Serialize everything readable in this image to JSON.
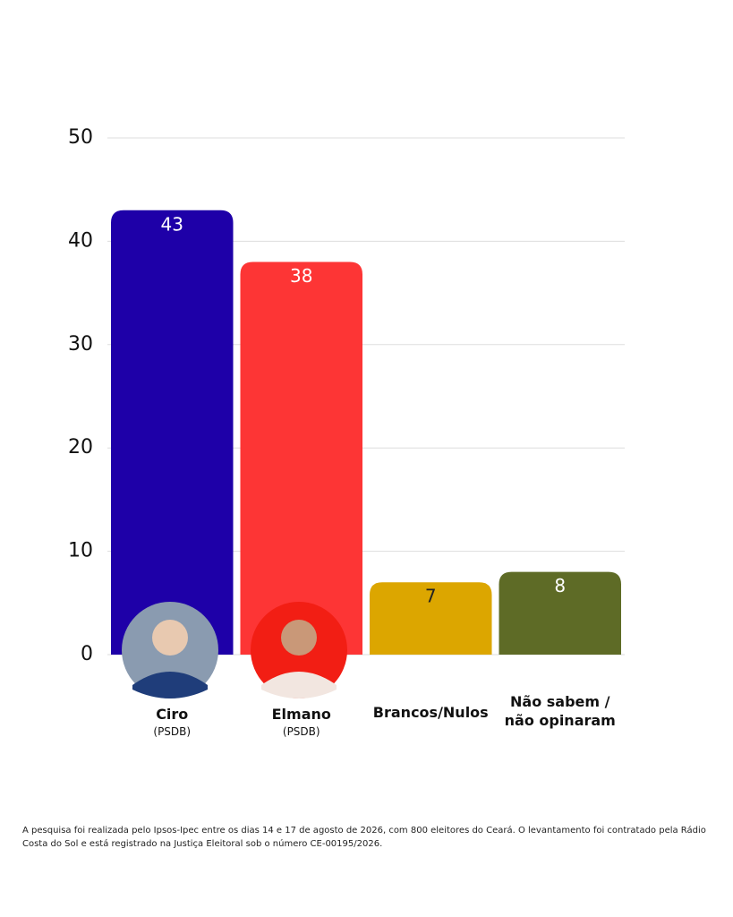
{
  "chart_data": {
    "type": "bar",
    "categories": [
      "Ciro",
      "Elmano",
      "Brancos/Nulos",
      "Não sabem / não opinaram"
    ],
    "parties": [
      "(PSDB)",
      "(PSDB)",
      null,
      null
    ],
    "values": [
      43,
      38,
      7,
      8
    ],
    "colors": [
      "#1e00a8",
      "#fd3535",
      "#dca600",
      "#5e6b26"
    ],
    "label_colors": [
      "#ffffff",
      "#ffffff",
      "#222222",
      "#ffffff"
    ],
    "ylim": [
      0,
      50
    ],
    "yticks": [
      0,
      10,
      20,
      30,
      40,
      50
    ],
    "grid": true,
    "note": "A pesquisa foi realizada pelo Ipsos-Ipec entre os dias 14 e 17 de agosto de 2026, com 800 eleitores do Ceará. O levantamento foi contratado pela Rádio Costa do Sol e está registrado na Justiça Eleitoral sob o número CE-00195/2026."
  }
}
